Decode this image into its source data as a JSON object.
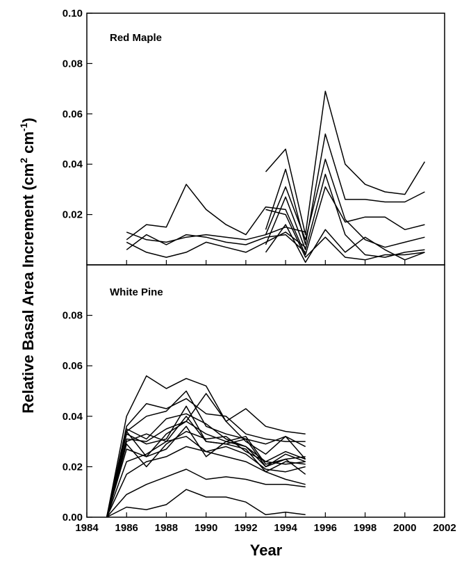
{
  "chart_data": [
    {
      "type": "line",
      "panel": "top",
      "title": "Red Maple",
      "xlabel": "Year",
      "ylabel": "Relative Basal Area Increment (cm2 cm-1)",
      "xlim": [
        1984,
        2002
      ],
      "ylim": [
        0,
        0.1
      ],
      "x_ticks": [
        "1984",
        "1986",
        "1988",
        "1990",
        "1992",
        "1994",
        "1996",
        "1998",
        "2000",
        "2002"
      ],
      "y_ticks": [
        "0.02",
        "0.04",
        "0.06",
        "0.08",
        "0.10"
      ],
      "y_tick_values": [
        0.02,
        0.04,
        0.06,
        0.08,
        0.1
      ],
      "series": [
        {
          "x": [
            1986,
            1987,
            1988,
            1989,
            1990,
            1991,
            1992,
            1993,
            1994,
            1995,
            1996,
            1997,
            1998,
            1999,
            2000,
            2001
          ],
          "values": [
            0.01,
            0.016,
            0.015,
            0.032,
            0.022,
            0.016,
            0.012,
            0.023,
            0.022,
            0.004,
            0.031,
            0.017,
            0.019,
            0.019,
            0.014,
            0.016
          ]
        },
        {
          "x": [
            1986,
            1987,
            1988,
            1989,
            1990,
            1991,
            1992,
            1993,
            1994,
            1995
          ],
          "values": [
            0.013,
            0.01,
            0.009,
            0.011,
            0.012,
            0.011,
            0.01,
            0.012,
            0.015,
            0.013
          ]
        },
        {
          "x": [
            1986,
            1987,
            1988,
            1989,
            1990,
            1991,
            1992,
            1993,
            1994,
            1995
          ],
          "values": [
            0.006,
            0.012,
            0.008,
            0.012,
            0.011,
            0.009,
            0.008,
            0.011,
            0.012,
            0.005
          ]
        },
        {
          "x": [
            1986,
            1987,
            1988,
            1989,
            1990,
            1991,
            1992,
            1993,
            1994,
            1995
          ],
          "values": [
            0.009,
            0.005,
            0.003,
            0.005,
            0.009,
            0.007,
            0.005,
            0.009,
            0.013,
            0.007
          ]
        },
        {
          "x": [
            1993,
            1994,
            1995,
            1996,
            1997,
            1998,
            1999,
            2000,
            2001
          ],
          "values": [
            0.037,
            0.046,
            0.012,
            0.069,
            0.04,
            0.032,
            0.029,
            0.028,
            0.041
          ]
        },
        {
          "x": [
            1993,
            1994,
            1995,
            1996,
            1997,
            1998,
            1999,
            2000,
            2001
          ],
          "values": [
            0.014,
            0.038,
            0.008,
            0.052,
            0.026,
            0.026,
            0.025,
            0.025,
            0.029
          ]
        },
        {
          "x": [
            1993,
            1994,
            1995,
            1996,
            1997,
            1998,
            1999,
            2000,
            2001
          ],
          "values": [
            0.012,
            0.031,
            0.01,
            0.042,
            0.018,
            0.01,
            0.007,
            0.009,
            0.011
          ]
        },
        {
          "x": [
            1993,
            1994,
            1995,
            1996,
            1997,
            1998,
            1999,
            2000,
            2001
          ],
          "values": [
            0.008,
            0.027,
            0.006,
            0.036,
            0.012,
            0.004,
            0.003,
            0.005,
            0.006
          ]
        },
        {
          "x": [
            1993,
            1994,
            1995,
            1996,
            1997,
            1998,
            1999,
            2000,
            2001
          ],
          "values": [
            0.005,
            0.016,
            0.001,
            0.014,
            0.005,
            0.011,
            0.006,
            0.002,
            0.005
          ]
        },
        {
          "x": [
            1993,
            1994,
            1995,
            1996,
            1997,
            1998,
            1999,
            2000,
            2001
          ],
          "values": [
            0.022,
            0.02,
            0.003,
            0.011,
            0.003,
            0.002,
            0.004,
            0.004,
            0.005
          ]
        }
      ]
    },
    {
      "type": "line",
      "panel": "bottom",
      "title": "White Pine",
      "xlabel": "Year",
      "ylabel": "Relative Basal Area Increment (cm2 cm-1)",
      "xlim": [
        1984,
        2002
      ],
      "ylim": [
        0,
        0.1
      ],
      "x_ticks": [
        "1984",
        "1986",
        "1988",
        "1990",
        "1992",
        "1994",
        "1996",
        "1998",
        "2000",
        "2002"
      ],
      "y_ticks": [
        "0.00",
        "0.02",
        "0.04",
        "0.06",
        "0.08"
      ],
      "y_tick_values": [
        0.0,
        0.02,
        0.04,
        0.06,
        0.08
      ],
      "series": [
        {
          "x": [
            1985,
            1986,
            1987,
            1988,
            1989,
            1990,
            1991,
            1992,
            1993,
            1994,
            1995
          ],
          "values": [
            0,
            0.04,
            0.056,
            0.051,
            0.055,
            0.052,
            0.038,
            0.043,
            0.036,
            0.034,
            0.033
          ]
        },
        {
          "x": [
            1985,
            1986,
            1987,
            1988,
            1989,
            1990,
            1991,
            1992,
            1993,
            1994,
            1995
          ],
          "values": [
            0,
            0.036,
            0.045,
            0.043,
            0.047,
            0.041,
            0.04,
            0.033,
            0.031,
            0.03,
            0.03
          ]
        },
        {
          "x": [
            1985,
            1986,
            1987,
            1988,
            1989,
            1990,
            1991,
            1992,
            1993,
            1994,
            1995
          ],
          "values": [
            0,
            0.034,
            0.04,
            0.042,
            0.05,
            0.036,
            0.033,
            0.031,
            0.029,
            0.032,
            0.028
          ]
        },
        {
          "x": [
            1985,
            1986,
            1987,
            1988,
            1989,
            1990,
            1991,
            1992,
            1993,
            1994,
            1995
          ],
          "values": [
            0,
            0.034,
            0.024,
            0.033,
            0.038,
            0.049,
            0.038,
            0.03,
            0.025,
            0.032,
            0.023
          ]
        },
        {
          "x": [
            1985,
            1986,
            1987,
            1988,
            1989,
            1990,
            1991,
            1992,
            1993,
            1994,
            1995
          ],
          "values": [
            0,
            0.035,
            0.031,
            0.039,
            0.041,
            0.037,
            0.031,
            0.028,
            0.022,
            0.026,
            0.023
          ]
        },
        {
          "x": [
            1985,
            1986,
            1987,
            1988,
            1989,
            1990,
            1991,
            1992,
            1993,
            1994,
            1995
          ],
          "values": [
            0,
            0.033,
            0.029,
            0.031,
            0.044,
            0.03,
            0.029,
            0.031,
            0.02,
            0.025,
            0.022
          ]
        },
        {
          "x": [
            1985,
            1986,
            1987,
            1988,
            1989,
            1990,
            1991,
            1992,
            1993,
            1994,
            1995
          ],
          "values": [
            0,
            0.031,
            0.03,
            0.035,
            0.038,
            0.033,
            0.03,
            0.032,
            0.021,
            0.023,
            0.024
          ]
        },
        {
          "x": [
            1985,
            1986,
            1987,
            1988,
            1989,
            1990,
            1991,
            1992,
            1993,
            1994,
            1995
          ],
          "values": [
            0,
            0.03,
            0.033,
            0.03,
            0.04,
            0.03,
            0.029,
            0.027,
            0.018,
            0.022,
            0.021
          ]
        },
        {
          "x": [
            1985,
            1986,
            1987,
            1988,
            1989,
            1990,
            1991,
            1992,
            1993,
            1994,
            1995
          ],
          "values": [
            0,
            0.029,
            0.02,
            0.029,
            0.034,
            0.031,
            0.032,
            0.026,
            0.022,
            0.021,
            0.022
          ]
        },
        {
          "x": [
            1985,
            1986,
            1987,
            1988,
            1989,
            1990,
            1991,
            1992,
            1993,
            1994,
            1995
          ],
          "values": [
            0,
            0.027,
            0.024,
            0.027,
            0.036,
            0.024,
            0.03,
            0.028,
            0.02,
            0.023,
            0.017
          ]
        },
        {
          "x": [
            1985,
            1986,
            1987,
            1988,
            1989,
            1990,
            1991,
            1992,
            1993,
            1994,
            1995
          ],
          "values": [
            0,
            0.022,
            0.025,
            0.03,
            0.032,
            0.026,
            0.028,
            0.025,
            0.019,
            0.018,
            0.02
          ]
        },
        {
          "x": [
            1985,
            1986,
            1987,
            1988,
            1989,
            1990,
            1991,
            1992,
            1993,
            1994,
            1995
          ],
          "values": [
            0,
            0.017,
            0.022,
            0.024,
            0.028,
            0.026,
            0.024,
            0.022,
            0.018,
            0.015,
            0.013
          ]
        },
        {
          "x": [
            1985,
            1986,
            1987,
            1988,
            1989,
            1990,
            1991,
            1992,
            1993,
            1994,
            1995
          ],
          "values": [
            0,
            0.009,
            0.013,
            0.016,
            0.019,
            0.015,
            0.016,
            0.015,
            0.013,
            0.013,
            0.012
          ]
        },
        {
          "x": [
            1985,
            1986,
            1987,
            1988,
            1989,
            1990,
            1991,
            1992,
            1993,
            1994,
            1995
          ],
          "values": [
            0,
            0.004,
            0.003,
            0.005,
            0.011,
            0.008,
            0.008,
            0.006,
            0.001,
            0.002,
            0.001
          ]
        }
      ]
    }
  ],
  "figure": {
    "ylabel_main": "Relative Basal Area Increment (cm",
    "ylabel_sup1": "2",
    "ylabel_mid": " cm",
    "ylabel_sup2": "-1",
    "ylabel_end": ")"
  }
}
